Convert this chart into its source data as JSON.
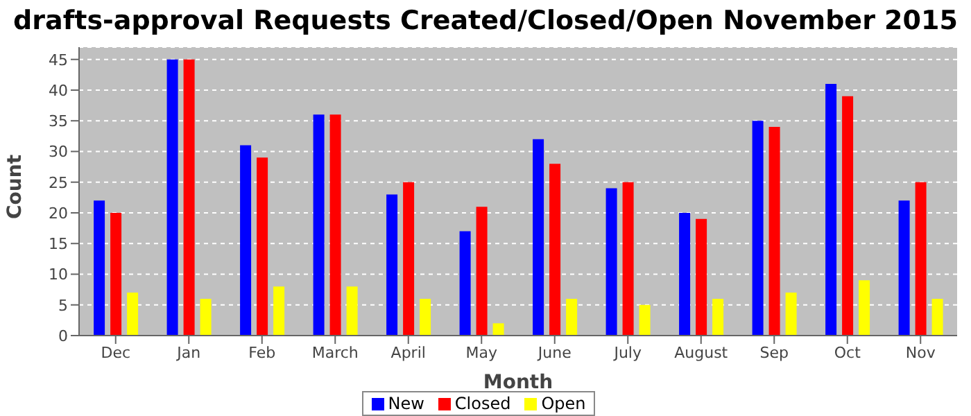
{
  "chart_data": {
    "type": "bar",
    "title": "drafts-approval Requests Created/Closed/Open November 2015",
    "xlabel": "Month",
    "ylabel": "Count",
    "categories": [
      "Dec",
      "Jan",
      "Feb",
      "March",
      "April",
      "May",
      "June",
      "July",
      "August",
      "Sep",
      "Oct",
      "Nov"
    ],
    "series": [
      {
        "name": "New",
        "color": "#0000ff",
        "values": [
          22,
          45,
          31,
          36,
          23,
          17,
          32,
          24,
          20,
          35,
          41,
          22
        ]
      },
      {
        "name": "Closed",
        "color": "#ff0000",
        "values": [
          20,
          45,
          29,
          36,
          25,
          21,
          28,
          25,
          19,
          34,
          39,
          25
        ]
      },
      {
        "name": "Open",
        "color": "#ffff00",
        "values": [
          7,
          6,
          8,
          8,
          6,
          2,
          6,
          5,
          6,
          7,
          9,
          6
        ]
      }
    ],
    "ylim": [
      0,
      47
    ],
    "yticks": [
      0,
      5,
      10,
      15,
      20,
      25,
      30,
      35,
      40,
      45
    ],
    "grid": "y",
    "legend": "bottom"
  }
}
